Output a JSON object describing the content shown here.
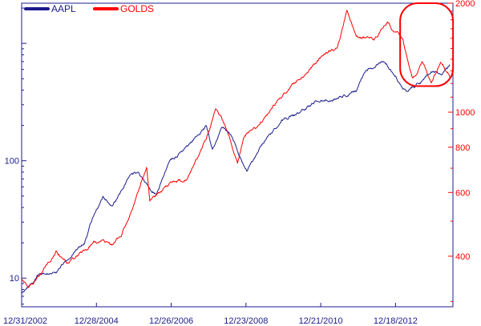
{
  "chart_data": {
    "type": "line",
    "title": "",
    "xlabel": "",
    "ylabel_left": "",
    "ylabel_right": "",
    "x_tick_labels": [
      "12/31/2002",
      "12/28/2004",
      "12/26/2006",
      "12/23/2008",
      "12/21/2010",
      "12/18/2012"
    ],
    "x_range": [
      "12/31/2002",
      "06/30/2014"
    ],
    "left_axis": {
      "scale": "log",
      "range": [
        5.7,
        2200
      ],
      "ticks": [
        10,
        100
      ],
      "tick_labels": [
        "10",
        "100"
      ],
      "color": "#1c1c8c"
    },
    "right_axis": {
      "scale": "log",
      "range": [
        290,
        2000
      ],
      "ticks": [
        400,
        600,
        800,
        1000,
        2000
      ],
      "tick_labels": [
        "400",
        "600",
        "800",
        "1000",
        "2000"
      ],
      "color": "#ff0000"
    },
    "grid": false,
    "legend": {
      "placement": "top-left"
    },
    "series": [
      {
        "name": "AAPL",
        "axis": "left",
        "color": "#1c1c8c",
        "points": [
          [
            "2002-12-31",
            7.2
          ],
          [
            "2003-06-01",
            10.5
          ],
          [
            "2003-12-01",
            11.5
          ],
          [
            "2004-06-01",
            17.3
          ],
          [
            "2004-09-01",
            20.0
          ],
          [
            "2004-12-01",
            35.0
          ],
          [
            "2005-03-01",
            50.0
          ],
          [
            "2005-06-01",
            40.0
          ],
          [
            "2005-09-01",
            53.0
          ],
          [
            "2005-12-01",
            75.0
          ],
          [
            "2006-02-01",
            80.0
          ],
          [
            "2006-06-01",
            60.0
          ],
          [
            "2006-08-01",
            52.0
          ],
          [
            "2006-12-01",
            95.0
          ],
          [
            "2007-06-01",
            130.0
          ],
          [
            "2007-12-01",
            200.0
          ],
          [
            "2008-02-01",
            130.0
          ],
          [
            "2008-05-01",
            195.0
          ],
          [
            "2008-08-01",
            165.0
          ],
          [
            "2008-12-01",
            90.0
          ],
          [
            "2009-01-01",
            83.0
          ],
          [
            "2009-03-01",
            100.0
          ],
          [
            "2009-06-01",
            140.0
          ],
          [
            "2009-12-01",
            220.0
          ],
          [
            "2010-06-01",
            260.0
          ],
          [
            "2010-12-01",
            330.0
          ],
          [
            "2011-06-01",
            350.0
          ],
          [
            "2011-12-01",
            400.0
          ],
          [
            "2012-03-01",
            600.0
          ],
          [
            "2012-09-01",
            700.0
          ],
          [
            "2012-12-01",
            530.0
          ],
          [
            "2013-04-01",
            400.0
          ],
          [
            "2013-06-01",
            430.0
          ],
          [
            "2013-09-01",
            480.0
          ],
          [
            "2013-12-01",
            560.0
          ],
          [
            "2014-03-01",
            540.0
          ],
          [
            "2014-06-01",
            650.0
          ]
        ]
      },
      {
        "name": "GOLDS",
        "axis": "right",
        "color": "#ff0000",
        "points": [
          [
            "2002-12-31",
            345.0
          ],
          [
            "2003-03-01",
            330.0
          ],
          [
            "2003-06-01",
            350.0
          ],
          [
            "2003-12-01",
            410.0
          ],
          [
            "2004-04-01",
            385.0
          ],
          [
            "2004-06-01",
            395.0
          ],
          [
            "2004-12-01",
            440.0
          ],
          [
            "2005-06-01",
            430.0
          ],
          [
            "2005-09-01",
            460.0
          ],
          [
            "2005-12-01",
            530.0
          ],
          [
            "2006-05-01",
            710.0
          ],
          [
            "2006-06-01",
            570.0
          ],
          [
            "2006-12-01",
            630.0
          ],
          [
            "2007-06-01",
            660.0
          ],
          [
            "2007-12-01",
            830.0
          ],
          [
            "2008-03-01",
            1000.0
          ],
          [
            "2008-06-01",
            920.0
          ],
          [
            "2008-10-01",
            720.0
          ],
          [
            "2008-12-01",
            860.0
          ],
          [
            "2009-06-01",
            940.0
          ],
          [
            "2009-12-01",
            1100.0
          ],
          [
            "2010-06-01",
            1240.0
          ],
          [
            "2010-12-01",
            1400.0
          ],
          [
            "2011-06-01",
            1500.0
          ],
          [
            "2011-09-01",
            1880.0
          ],
          [
            "2011-12-01",
            1600.0
          ],
          [
            "2012-06-01",
            1600.0
          ],
          [
            "2012-10-01",
            1780.0
          ],
          [
            "2012-12-01",
            1680.0
          ],
          [
            "2013-03-01",
            1600.0
          ],
          [
            "2013-06-01",
            1230.0
          ],
          [
            "2013-09-01",
            1380.0
          ],
          [
            "2013-12-01",
            1210.0
          ],
          [
            "2014-03-01",
            1380.0
          ],
          [
            "2014-06-01",
            1250.0
          ]
        ]
      }
    ],
    "annotations": [
      {
        "type": "rounded-rectangle",
        "color": "#ff0000",
        "x_range": [
          "2013-02-01",
          "2014-07-01"
        ],
        "right_axis_range": [
          1180,
          2000
        ]
      }
    ]
  }
}
